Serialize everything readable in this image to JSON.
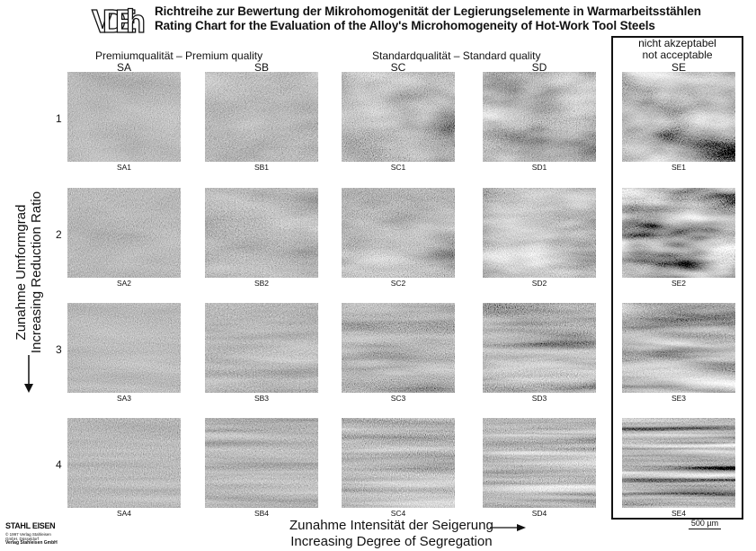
{
  "header": {
    "logo": "VDEh",
    "title_de": "Richtreihe zur Bewertung der Mikrohomogenität der Legierungselemente in Warmarbeitsstählen",
    "title_en": "Rating Chart for the Evaluation of the Alloy's Microhomogeneity of Hot-Work Tool Steels"
  },
  "groups": {
    "premium": "Premiumqualität  –  Premium quality",
    "standard": "Standardqualität  –  Standard quality",
    "not_acceptable_de": "nicht akzeptabel",
    "not_acceptable_en": "not acceptable"
  },
  "columns": [
    "SA",
    "SB",
    "SC",
    "SD",
    "SE"
  ],
  "rows": [
    "1",
    "2",
    "3",
    "4"
  ],
  "cells": [
    [
      "SA1",
      "SB1",
      "SC1",
      "SD1",
      "SE1"
    ],
    [
      "SA2",
      "SB2",
      "SC2",
      "SD2",
      "SE2"
    ],
    [
      "SA3",
      "SB3",
      "SC3",
      "SD3",
      "SE3"
    ],
    [
      "SA4",
      "SB4",
      "SC4",
      "SD4",
      "SE4"
    ]
  ],
  "axis_vertical": {
    "de": "Zunahme Umformgrad",
    "en": "Increasing Reduction Ratio"
  },
  "axis_horizontal": {
    "de": "Zunahme Intensität der Seigerung",
    "en": "Increasing Degree of Segregation"
  },
  "scale_bar": "500 µm",
  "publisher": {
    "brand": "STAHL EISEN",
    "line1": "© 1997 Verlag Stahleisen GmbH, Düsseldorf",
    "name": "Verlag Stahleisen GmbH"
  }
}
